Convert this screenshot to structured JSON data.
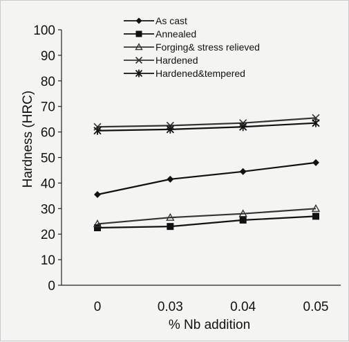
{
  "chart_data": {
    "type": "line",
    "title": "",
    "xlabel": "% Nb addition",
    "ylabel": "Hardness (HRC)",
    "categories": [
      "0",
      "0.03",
      "0.04",
      "0.05"
    ],
    "ylim": [
      0,
      100
    ],
    "yticks": [
      0,
      10,
      20,
      30,
      40,
      50,
      60,
      70,
      80,
      90,
      100
    ],
    "grid": false,
    "legend_position": "top",
    "series": [
      {
        "name": "As cast",
        "marker": "diamond",
        "color": "#111111",
        "values": [
          35.5,
          41.5,
          44.5,
          48
        ]
      },
      {
        "name": "Annealed",
        "marker": "square",
        "color": "#111111",
        "values": [
          22.5,
          23,
          25.5,
          27
        ]
      },
      {
        "name": "Forging& stress relieved",
        "marker": "triangle",
        "color": "#333333",
        "values": [
          24,
          26.5,
          28,
          30
        ]
      },
      {
        "name": "Hardened",
        "marker": "x",
        "color": "#333333",
        "values": [
          62,
          62.5,
          63.5,
          65.5
        ]
      },
      {
        "name": "Hardened&tempered",
        "marker": "star",
        "color": "#111111",
        "values": [
          60.5,
          61,
          62,
          63.5
        ]
      }
    ]
  }
}
